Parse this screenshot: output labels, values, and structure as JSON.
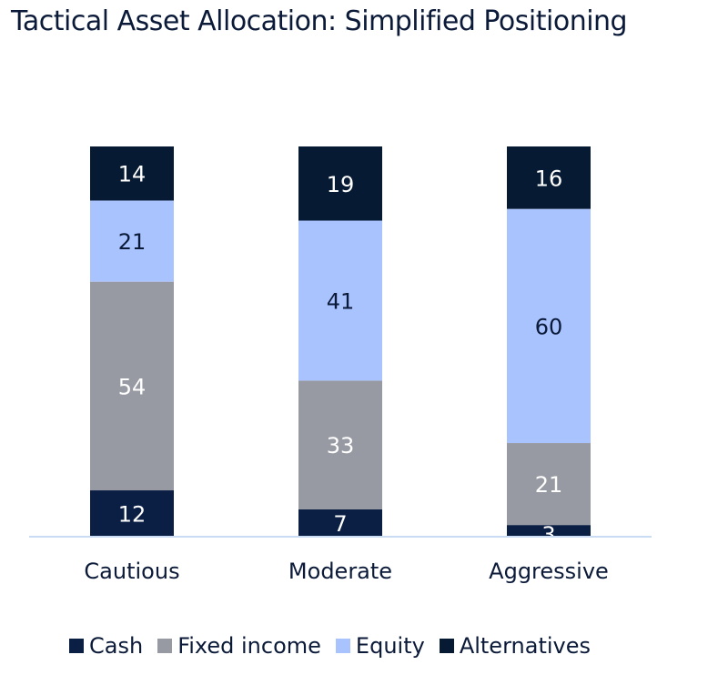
{
  "title": "Tactical Asset Allocation: Simplified Positioning",
  "colors": {
    "cash": "#0b1f44",
    "fixed_income": "#979aa2",
    "equity": "#a9c3ff",
    "alternatives": "#071a33",
    "axis": "#c9dcf3",
    "text": "#0b1a38"
  },
  "chart_data": {
    "type": "bar",
    "stacked": true,
    "percent": true,
    "categories": [
      "Cautious",
      "Moderate",
      "Aggressive"
    ],
    "series": [
      {
        "name": "Cash",
        "values": [
          12,
          7,
          3
        ],
        "color": "#0b1f44",
        "label_color": "#ffffff"
      },
      {
        "name": "Fixed income",
        "values": [
          54,
          33,
          21
        ],
        "color": "#979aa2",
        "label_color": "#ffffff"
      },
      {
        "name": "Equity",
        "values": [
          21,
          41,
          60
        ],
        "color": "#a9c3ff",
        "label_color": "#0b1a38"
      },
      {
        "name": "Alternatives",
        "values": [
          14,
          19,
          16
        ],
        "color": "#071a33",
        "label_color": "#ffffff"
      }
    ],
    "ylim": [
      0,
      100
    ],
    "grid": false,
    "legend_position": "bottom"
  }
}
